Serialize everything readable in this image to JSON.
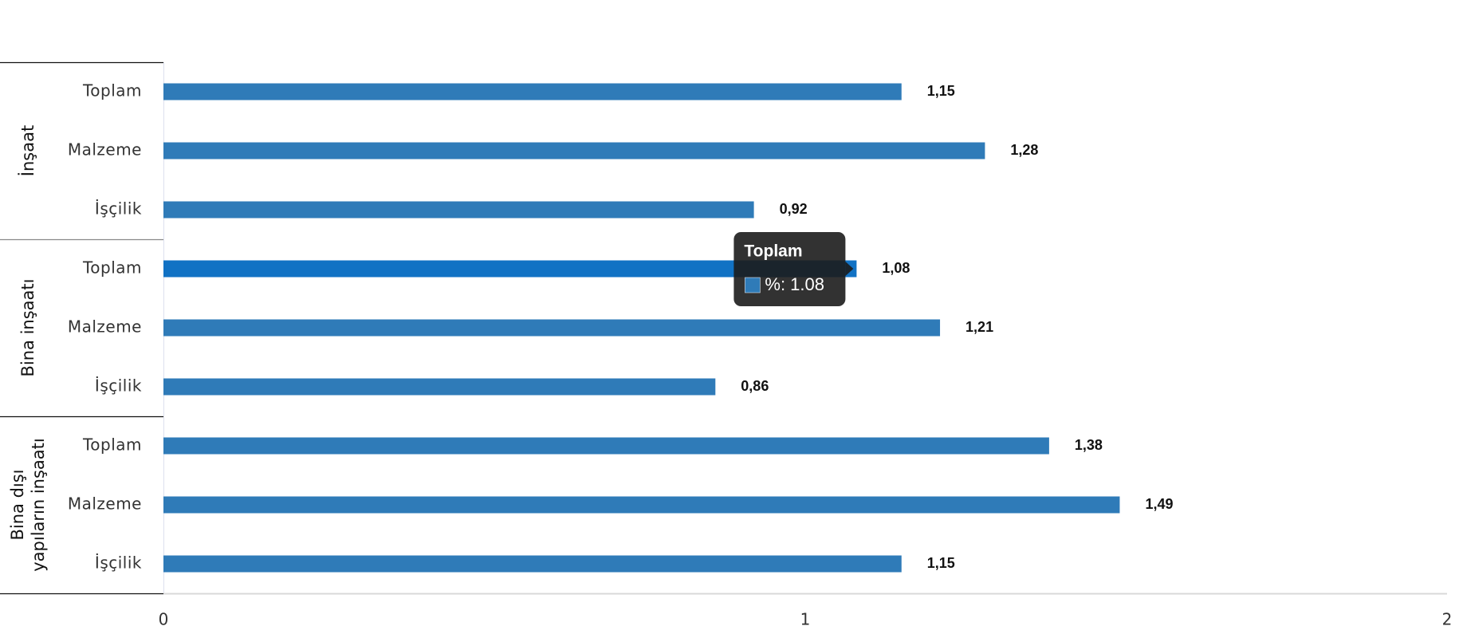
{
  "chart_data": {
    "type": "bar",
    "orientation": "horizontal",
    "color": "#2f7bb8",
    "highlight_color": "#1172c4",
    "groups": [
      {
        "name": "İnşaat",
        "categories": [
          "Toplam",
          "Malzeme",
          "İşçilik"
        ],
        "values": [
          1.15,
          1.28,
          0.92
        ],
        "value_labels": [
          "1,15",
          "1,28",
          "0,92"
        ]
      },
      {
        "name": "Bina inşaatı",
        "categories": [
          "Toplam",
          "Malzeme",
          "İşçilik"
        ],
        "values": [
          1.08,
          1.21,
          0.86
        ],
        "value_labels": [
          "1,08",
          "1,21",
          "0,86"
        ]
      },
      {
        "name": "Bina dışı yapıların inşaatı",
        "categories": [
          "Toplam",
          "Malzeme",
          "İşçilik"
        ],
        "values": [
          1.38,
          1.49,
          1.15
        ],
        "value_labels": [
          "1,38",
          "1,49",
          "1,15"
        ]
      }
    ],
    "xlim": [
      0,
      2
    ],
    "xticks": [
      0,
      1,
      2
    ],
    "tooltip": {
      "group": 1,
      "index": 0,
      "title": "Toplam",
      "text": "%: 1.08"
    }
  }
}
